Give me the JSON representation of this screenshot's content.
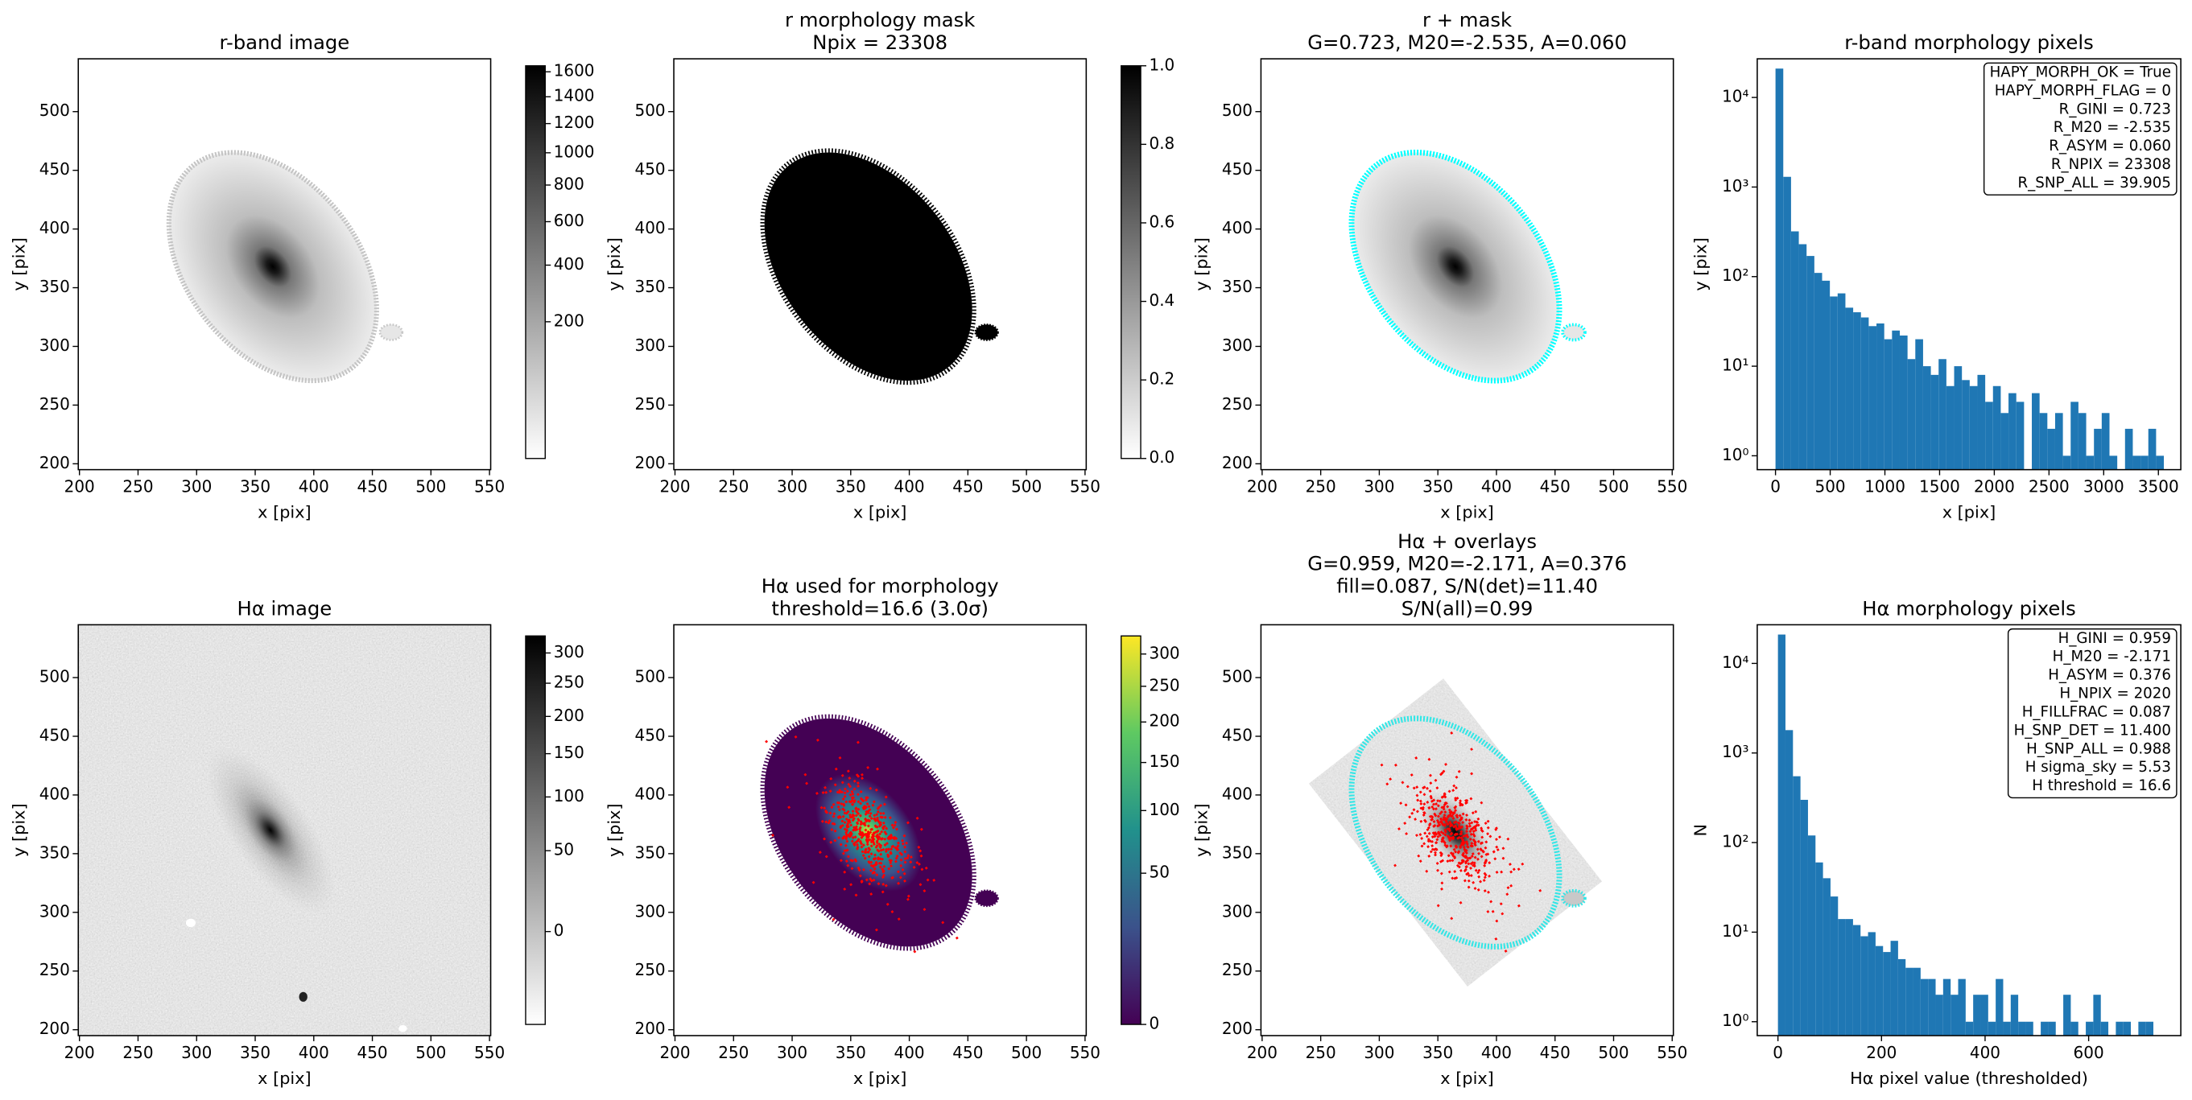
{
  "chart_data": [
    {
      "type": "image",
      "title": [
        "r-band image"
      ],
      "xlabel": "x [pix]",
      "ylabel": "y [pix]",
      "xlim": [
        199,
        551
      ],
      "ylim": [
        195,
        545
      ],
      "xticks": [
        200,
        250,
        300,
        350,
        400,
        450,
        500,
        550
      ],
      "yticks": [
        200,
        250,
        300,
        350,
        400,
        450,
        500
      ],
      "colorbar": {
        "cmap": "gray_r",
        "scale": "sqrt",
        "clim": [
          0,
          1650
        ],
        "ticks": [
          200,
          400,
          600,
          800,
          1000,
          1200,
          1400,
          1600
        ]
      }
    },
    {
      "type": "image",
      "title": [
        "r morphology mask",
        "Npix = 23308"
      ],
      "xlabel": "x [pix]",
      "ylabel": "y [pix]",
      "xlim": [
        199,
        551
      ],
      "ylim": [
        195,
        545
      ],
      "xticks": [
        200,
        250,
        300,
        350,
        400,
        450,
        500,
        550
      ],
      "yticks": [
        200,
        250,
        300,
        350,
        400,
        450,
        500
      ],
      "colorbar": {
        "cmap": "gray_r",
        "scale": "linear",
        "clim": [
          0,
          1
        ],
        "ticks": [
          {
            "value": 0,
            "label": "0.0"
          },
          {
            "value": 0.2,
            "label": "0.2"
          },
          {
            "value": 0.4,
            "label": "0.4"
          },
          {
            "value": 0.6,
            "label": "0.6"
          },
          {
            "value": 0.8,
            "label": "0.8"
          },
          {
            "value": 1,
            "label": "1.0"
          }
        ]
      }
    },
    {
      "type": "image",
      "title": [
        "r + mask",
        "G=0.723, M20=-2.535, A=0.060"
      ],
      "xlabel": "x [pix]",
      "ylabel": "y [pix]",
      "xlim": [
        199,
        551
      ],
      "ylim": [
        195,
        545
      ],
      "xticks": [
        200,
        250,
        300,
        350,
        400,
        450,
        500,
        550
      ],
      "yticks": [
        200,
        250,
        300,
        350,
        400,
        450,
        500
      ]
    },
    {
      "type": "histogram",
      "title": [
        "r-band morphology pixels"
      ],
      "xlabel": "x [pix]",
      "ylabel": "y [pix]",
      "color": "#1f77b4",
      "yscale": "log",
      "xlim": [
        -167,
        3705
      ],
      "xticks": [
        0,
        500,
        1000,
        1500,
        2000,
        2500,
        3000,
        3500
      ],
      "ylim": [
        0.7,
        27000
      ],
      "yticks": [
        {
          "value": 1,
          "label": "10⁰"
        },
        {
          "value": 10,
          "label": "10¹"
        },
        {
          "value": 100,
          "label": "10²"
        },
        {
          "value": 1000,
          "label": "10³"
        },
        {
          "value": 10000,
          "label": "10⁴"
        }
      ],
      "bins": [
        0,
        71,
        142,
        213,
        284,
        355,
        426,
        497,
        568,
        639,
        710,
        781,
        852,
        923,
        994,
        1065,
        1136,
        1207,
        1278,
        1349,
        1420,
        1491,
        1562,
        1633,
        1704,
        1775,
        1846,
        1917,
        1988,
        2059,
        2130,
        2201,
        2272,
        2343,
        2414,
        2485,
        2556,
        2627,
        2698,
        2769,
        2840,
        2911,
        2982,
        3053,
        3124,
        3195,
        3266,
        3337,
        3408,
        3479,
        3550
      ],
      "counts": [
        21000,
        1300,
        320,
        230,
        170,
        110,
        90,
        60,
        65,
        45,
        40,
        35,
        28,
        30,
        20,
        25,
        22,
        12,
        20,
        10,
        8,
        12,
        6,
        10,
        7,
        6,
        8,
        4,
        6,
        3,
        5,
        4,
        0,
        5,
        3,
        2,
        3,
        1,
        4,
        3,
        1,
        2,
        3,
        1,
        0,
        2,
        1,
        1,
        2,
        1
      ],
      "annotation": [
        "HAPY_MORPH_OK = True",
        "HAPY_MORPH_FLAG = 0",
        "R_GINI = 0.723",
        "R_M20 = -2.535",
        "R_ASYM = 0.060",
        "R_NPIX = 23308",
        "R_SNP_ALL = 39.905"
      ]
    },
    {
      "type": "image",
      "title": [
        "Hα image"
      ],
      "xlabel": "x [pix]",
      "ylabel": "y [pix]",
      "xlim": [
        199,
        551
      ],
      "ylim": [
        195,
        545
      ],
      "xticks": [
        200,
        250,
        300,
        350,
        400,
        450,
        500,
        550
      ],
      "yticks": [
        200,
        250,
        300,
        350,
        400,
        450,
        500
      ],
      "colorbar": {
        "cmap": "gray_r",
        "scale": "sqrt",
        "clim": [
          -20,
          330
        ],
        "ticks": [
          0,
          50,
          100,
          150,
          200,
          250,
          300
        ]
      }
    },
    {
      "type": "image",
      "title": [
        "Hα used for morphology",
        "threshold=16.6 (3.0σ)"
      ],
      "xlabel": "x [pix]",
      "ylabel": "y [pix]",
      "xlim": [
        199,
        551
      ],
      "ylim": [
        195,
        545
      ],
      "xticks": [
        200,
        250,
        300,
        350,
        400,
        450,
        500,
        550
      ],
      "yticks": [
        200,
        250,
        300,
        350,
        400,
        450,
        500
      ],
      "colorbar": {
        "cmap": "viridis",
        "scale": "sqrt",
        "clim": [
          0,
          330
        ],
        "ticks": [
          0,
          50,
          100,
          150,
          200,
          250,
          300
        ]
      }
    },
    {
      "type": "image",
      "title": [
        "Hα + overlays",
        "G=0.959, M20=-2.171, A=0.376",
        "fill=0.087, S/N(det)=11.40",
        "S/N(all)=0.99"
      ],
      "xlabel": "x [pix]",
      "ylabel": "y [pix]",
      "xlim": [
        199,
        551
      ],
      "ylim": [
        195,
        545
      ],
      "xticks": [
        200,
        250,
        300,
        350,
        400,
        450,
        500,
        550
      ],
      "yticks": [
        200,
        250,
        300,
        350,
        400,
        450,
        500
      ]
    },
    {
      "type": "histogram",
      "title": [
        "Hα morphology pixels"
      ],
      "xlabel": "Hα pixel value (thresholded)",
      "ylabel": "N",
      "color": "#1f77b4",
      "yscale": "log",
      "xlim": [
        -40,
        778
      ],
      "xticks": [
        0,
        200,
        400,
        600
      ],
      "ylim": [
        0.7,
        27000
      ],
      "yticks": [
        {
          "value": 1,
          "label": "10⁰"
        },
        {
          "value": 10,
          "label": "10¹"
        },
        {
          "value": 100,
          "label": "10²"
        },
        {
          "value": 1000,
          "label": "10³"
        },
        {
          "value": 10000,
          "label": "10⁴"
        }
      ],
      "bins": [
        0,
        14.5,
        29,
        43.5,
        58,
        72.5,
        87,
        101.5,
        116,
        130.5,
        145,
        159.5,
        174,
        188.5,
        203,
        217.5,
        232,
        246.5,
        261,
        275.5,
        290,
        304.5,
        319,
        333.5,
        348,
        362.5,
        377,
        391.5,
        406,
        420.5,
        435,
        449.5,
        464,
        478.5,
        493,
        507.5,
        522,
        536.5,
        551,
        565.5,
        580,
        594.5,
        609,
        623.5,
        638,
        652.5,
        667,
        681.5,
        696,
        710.5,
        725
      ],
      "counts": [
        21000,
        1800,
        550,
        300,
        120,
        60,
        40,
        25,
        14,
        14,
        12,
        9,
        10,
        7,
        6,
        8,
        5,
        4,
        4,
        3,
        3,
        2,
        3,
        2,
        3,
        1,
        2,
        2,
        1,
        3,
        1,
        2,
        1,
        1,
        0,
        1,
        1,
        0,
        2,
        1,
        0,
        1,
        2,
        1,
        0,
        1,
        1,
        0,
        1,
        1
      ],
      "annotation": [
        "H_GINI = 0.959",
        "H_M20 = -2.171",
        "H_ASYM = 0.376",
        "H_NPIX = 2020",
        "H_FILLFRAC = 0.087",
        "H_SNP_DET = 11.400",
        "H_SNP_ALL = 0.988",
        "H sigma_sky = 5.53",
        "H threshold = 16.6"
      ]
    }
  ]
}
